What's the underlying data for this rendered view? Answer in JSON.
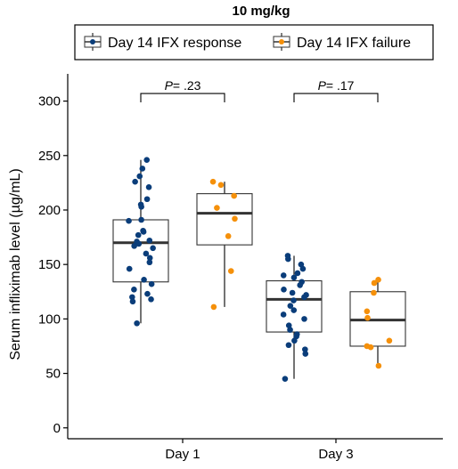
{
  "chart_data": {
    "type": "boxplot",
    "title": "10 mg/kg",
    "ylabel": "Serum infliximab level (µg/mL)",
    "xlabel": "",
    "categories": [
      "Day 1",
      "Day 3"
    ],
    "ylim": [
      -10,
      325
    ],
    "yticks": [
      0,
      50,
      100,
      150,
      200,
      250,
      300
    ],
    "legend_position": "top",
    "grid": false,
    "series": [
      {
        "name": "Day 14 IFX response",
        "color": "#0a3d7a",
        "boxes": [
          {
            "category": "Day 1",
            "min": 96,
            "q1": 134,
            "median": 170,
            "q3": 191,
            "max": 246,
            "points": [
              246,
              238,
              231,
              226,
              221,
              210,
              205,
              203,
              191,
              190,
              181,
              180,
              177,
              172,
              171,
              169,
              167,
              165,
              160,
              156,
              152,
              146,
              136,
              132,
              127,
              123,
              120,
              118,
              116,
              96
            ]
          },
          {
            "category": "Day 3",
            "min": 45,
            "q1": 88,
            "median": 118,
            "q3": 135,
            "max": 158,
            "points": [
              158,
              155,
              150,
              146,
              142,
              140,
              138,
              134,
              131,
              127,
              124,
              122,
              120,
              117,
              112,
              108,
              104,
              100,
              94,
              90,
              86,
              84,
              80,
              76,
              72,
              68,
              45
            ]
          }
        ]
      },
      {
        "name": "Day 14 IFX failure",
        "color": "#f5900a",
        "boxes": [
          {
            "category": "Day 1",
            "min": 111,
            "q1": 168,
            "median": 197,
            "q3": 215,
            "max": 226,
            "points": [
              226,
              223,
              213,
              202,
              192,
              176,
              144,
              111
            ]
          },
          {
            "category": "Day 3",
            "min": 57,
            "q1": 75,
            "median": 99,
            "q3": 125,
            "max": 136,
            "points": [
              136,
              133,
              124,
              107,
              101,
              80,
              75,
              74,
              57
            ]
          }
        ]
      }
    ],
    "annotations": [
      {
        "category": "Day 1",
        "prefix": "P",
        "value": "= .23",
        "y": 307
      },
      {
        "category": "Day 3",
        "prefix": "P",
        "value": "= .17",
        "y": 307
      }
    ]
  }
}
